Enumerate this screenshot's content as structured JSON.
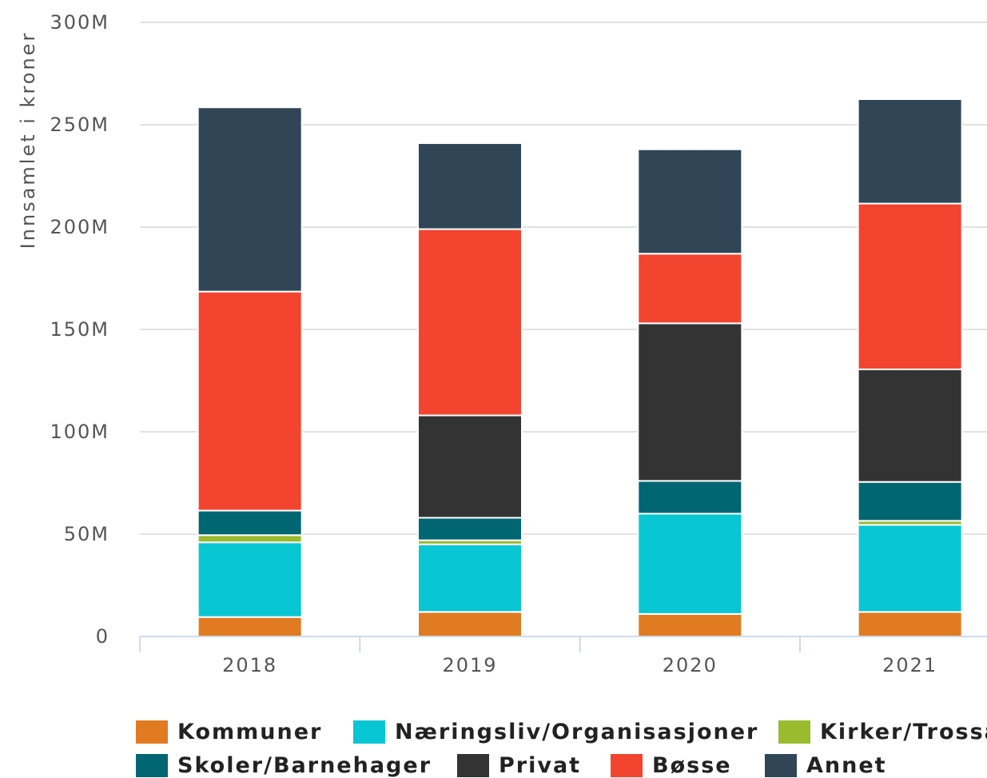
{
  "chart_data": {
    "type": "bar",
    "stacked": true,
    "categories": [
      "2018",
      "2019",
      "2020",
      "2021"
    ],
    "ylabel": "Innsamlet i kroner",
    "ylim": [
      0,
      300000000
    ],
    "yticks": [
      {
        "value": 0,
        "label": "0"
      },
      {
        "value": 50000000,
        "label": "50M"
      },
      {
        "value": 100000000,
        "label": "100M"
      },
      {
        "value": 150000000,
        "label": "150M"
      },
      {
        "value": 200000000,
        "label": "200M"
      },
      {
        "value": 250000000,
        "label": "250M"
      },
      {
        "value": 300000000,
        "label": "300M"
      }
    ],
    "grid": true,
    "legend_position": "bottom",
    "series": [
      {
        "name": "Kommuner",
        "color": "#e07b22",
        "values": [
          9500000,
          12000000,
          11000000,
          12000000
        ]
      },
      {
        "name": "Næringsliv/Organisasjoner",
        "color": "#08c6d3",
        "values": [
          36500000,
          33000000,
          49000000,
          42500000
        ]
      },
      {
        "name": "Kirker/Trossamfunn",
        "color": "#9bbb2e",
        "values": [
          3500000,
          2000000,
          0,
          2000000
        ]
      },
      {
        "name": "Skoler/Barnehager",
        "color": "#006672",
        "values": [
          12000000,
          11000000,
          16000000,
          19000000
        ]
      },
      {
        "name": "Privat",
        "color": "#333333",
        "values": [
          0,
          50000000,
          77000000,
          55000000
        ]
      },
      {
        "name": "Bøsse",
        "color": "#f2442f",
        "values": [
          107000000,
          91000000,
          34000000,
          81000000
        ]
      },
      {
        "name": "Annet",
        "color": "#304657",
        "values": [
          90000000,
          42000000,
          51000000,
          51000000
        ]
      }
    ]
  }
}
